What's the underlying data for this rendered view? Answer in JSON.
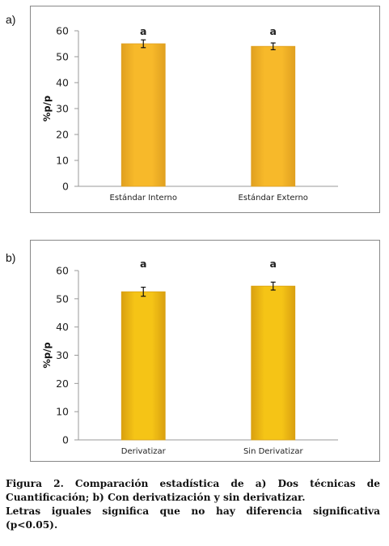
{
  "panels": {
    "a_label": "a)",
    "b_label": "b)"
  },
  "chart_data": [
    {
      "type": "bar",
      "panel": "a)",
      "categories": [
        "Estándar Interno",
        "Estándar Externo"
      ],
      "values": [
        55,
        54
      ],
      "errors": [
        1.5,
        1.3
      ],
      "significance_letters": [
        "a",
        "a"
      ],
      "ylabel": "%p/p",
      "xlabel": "",
      "ylim": [
        0,
        60
      ],
      "yticks": [
        0,
        10,
        20,
        30,
        40,
        50,
        60
      ],
      "bar_color": "#f7b92a",
      "bar_edge_color": "#e0a020",
      "grid": false
    },
    {
      "type": "bar",
      "panel": "b)",
      "categories": [
        "Derivatizar",
        "Sin Derivatizar"
      ],
      "values": [
        52.5,
        54.5
      ],
      "errors": [
        1.6,
        1.4
      ],
      "significance_letters": [
        "a",
        "a"
      ],
      "ylabel": "%p/p",
      "xlabel": "",
      "ylim": [
        0,
        60
      ],
      "yticks": [
        0,
        10,
        20,
        30,
        40,
        50,
        60
      ],
      "bar_color": "#f5c416",
      "bar_edge_color": "#d9a010",
      "grid": false
    }
  ],
  "caption": {
    "line1": "Figura 2. Comparación estadística de a) Dos técnicas de Cuantificación; b) Con derivatización y sin derivatizar.",
    "line2": "Letras iguales significa que no hay diferencia significativa (p<0.05)."
  }
}
